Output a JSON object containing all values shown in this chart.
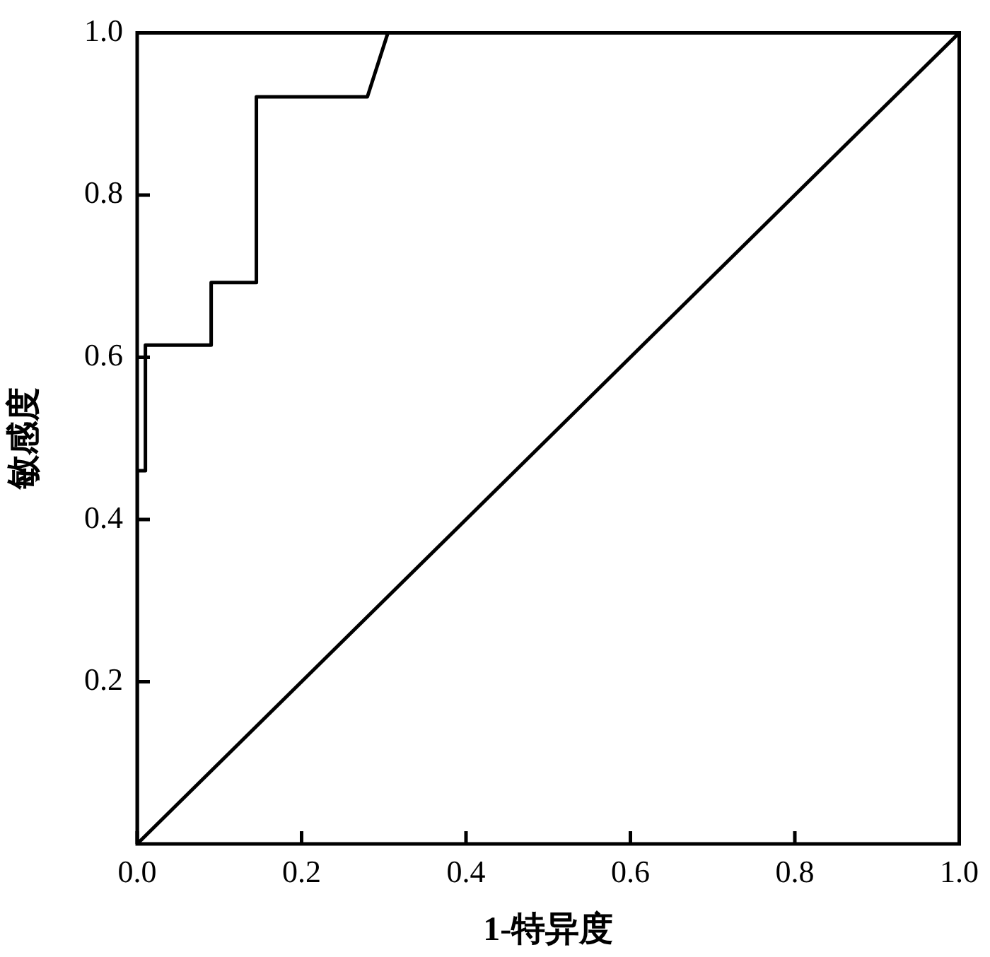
{
  "chart_data": {
    "type": "line",
    "xlabel": "1-特异度",
    "ylabel": "敏感度",
    "xlim": [
      0,
      1
    ],
    "ylim": [
      0,
      1
    ],
    "xticks": [
      {
        "value": 0,
        "label": "0.0"
      },
      0.2,
      0.4,
      0.6,
      0.8,
      {
        "value": 1,
        "label": "1.0"
      }
    ],
    "yticks": [
      0.2,
      0.4,
      0.6,
      0.8,
      {
        "value": 1,
        "label": "1.0"
      }
    ],
    "grid": false,
    "legend": false,
    "marker": "none",
    "line_style": "solid",
    "series": [
      {
        "color": "#000000",
        "x": [
          0,
          0,
          0.01,
          0.01,
          0.09,
          0.09,
          0.145,
          0.145,
          0.28,
          0.305,
          1
        ],
        "values": [
          0,
          0.46,
          0.46,
          0.615,
          0.615,
          0.692,
          0.692,
          0.921,
          0.921,
          1,
          1
        ]
      },
      {
        "color": "#000000",
        "x": [
          0,
          1
        ],
        "values": [
          0,
          1
        ]
      }
    ]
  }
}
